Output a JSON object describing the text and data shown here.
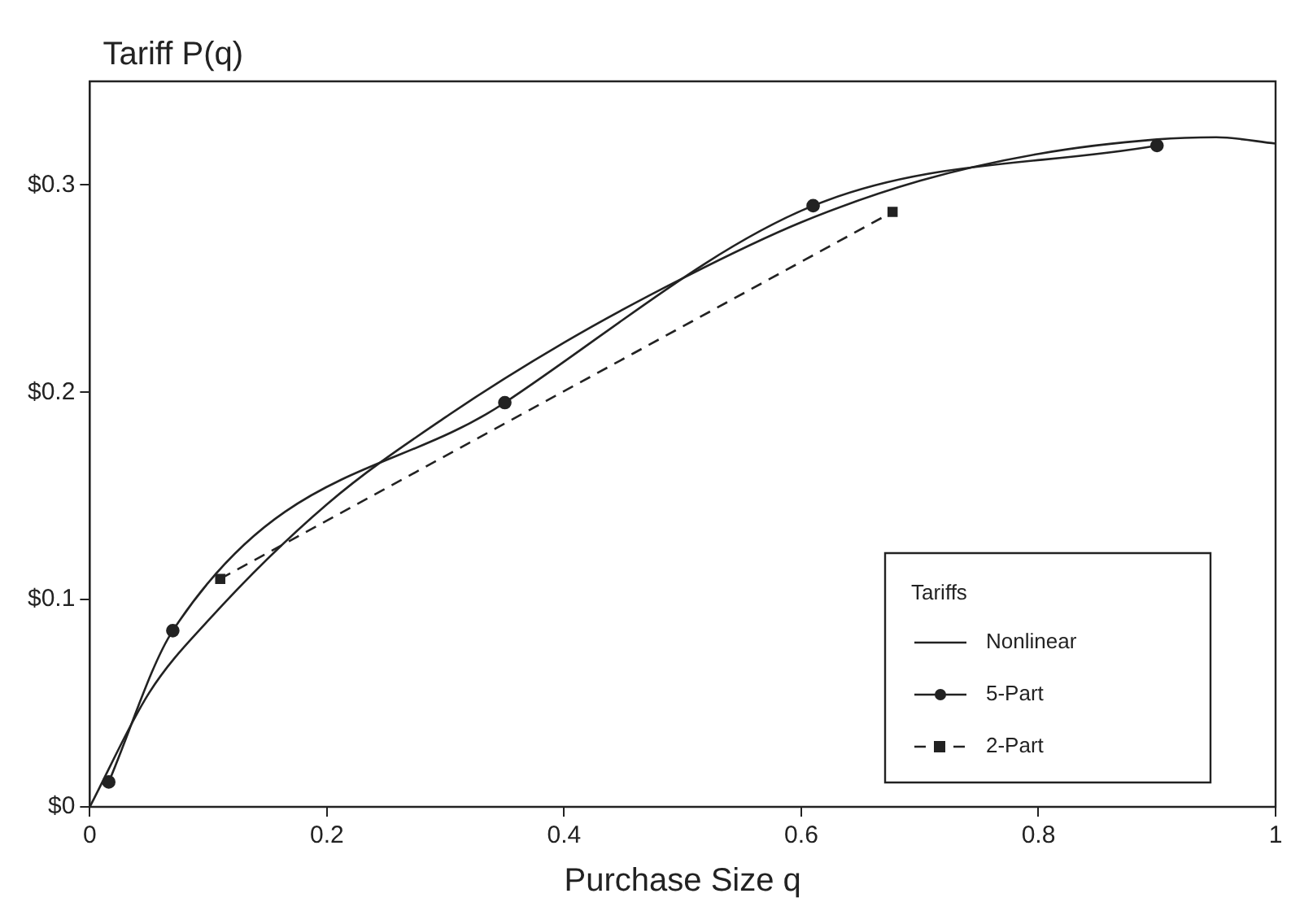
{
  "chart_data": {
    "type": "line",
    "ylabel": "Tariff P(q)",
    "xlabel": "Purchase Size q",
    "legend_title": "Tariffs",
    "legend": "bottom right",
    "grid": false,
    "xlim": [
      0,
      1
    ],
    "xticks": [
      0,
      0.2,
      0.4,
      0.6,
      0.8,
      1
    ],
    "ylim": [
      0,
      0.35
    ],
    "yticks": [
      {
        "value": 0,
        "label": "$0"
      },
      {
        "value": 0.1,
        "label": "$0.1"
      },
      {
        "value": 0.2,
        "label": "$0.2"
      },
      {
        "value": 0.3,
        "label": "$0.3"
      }
    ],
    "series": [
      {
        "name": "Nonlinear",
        "color": "#222222",
        "marker": "none",
        "line_style": "solid",
        "x": [
          0,
          0.05,
          0.1,
          0.2,
          0.3,
          0.4,
          0.5,
          0.6,
          0.7,
          0.8,
          0.9,
          0.95,
          1
        ],
        "values": [
          0,
          0.055,
          0.09,
          0.146,
          0.188,
          0.224,
          0.255,
          0.282,
          0.302,
          0.315,
          0.322,
          0.323,
          0.32
        ]
      },
      {
        "name": "5-Part",
        "color": "#222222",
        "marker": "circle",
        "line_style": "solid",
        "x": [
          0.016,
          0.07,
          0.35,
          0.61,
          0.9
        ],
        "values": [
          0.012,
          0.085,
          0.195,
          0.29,
          0.319
        ]
      },
      {
        "name": "2-Part",
        "color": "#222222",
        "marker": "square",
        "line_style": "dashed",
        "x": [
          0.11,
          0.677
        ],
        "values": [
          0.11,
          0.287
        ]
      }
    ]
  }
}
